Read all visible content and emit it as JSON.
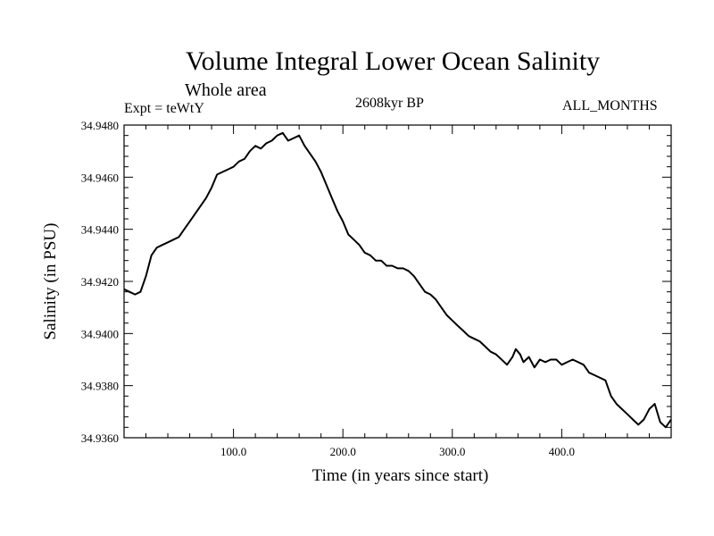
{
  "header": {
    "title": "Volume Integral Lower Ocean Salinity",
    "subtitle": "Whole area",
    "experiment": "Expt = teWtY",
    "period": "2608kyr BP",
    "months": "ALL_MONTHS"
  },
  "chart_data": {
    "type": "line",
    "title": "Volume Integral Lower Ocean Salinity",
    "xlabel": "Time (in years since start)",
    "ylabel": "Salinity (in PSU)",
    "xlim": [
      0,
      500
    ],
    "ylim": [
      34.936,
      34.948
    ],
    "x_ticks": [
      100,
      200,
      300,
      400
    ],
    "x_tick_labels": [
      "100.0",
      "200.0",
      "300.0",
      "400.0"
    ],
    "y_ticks": [
      34.936,
      34.938,
      34.94,
      34.942,
      34.944,
      34.946,
      34.948
    ],
    "y_tick_labels": [
      "34.9360",
      "34.9380",
      "34.9400",
      "34.9420",
      "34.9440",
      "34.9460",
      "34.9480"
    ],
    "grid": false,
    "series": [
      {
        "name": "salinity",
        "x": [
          0,
          5,
          10,
          15,
          20,
          25,
          30,
          35,
          40,
          45,
          50,
          55,
          60,
          65,
          70,
          75,
          80,
          85,
          90,
          95,
          100,
          105,
          110,
          115,
          120,
          125,
          130,
          135,
          140,
          145,
          150,
          155,
          160,
          165,
          170,
          175,
          180,
          185,
          190,
          195,
          200,
          205,
          210,
          215,
          220,
          225,
          230,
          235,
          240,
          245,
          250,
          255,
          260,
          265,
          270,
          275,
          280,
          285,
          290,
          295,
          300,
          305,
          310,
          315,
          320,
          325,
          330,
          335,
          340,
          345,
          350,
          355,
          358,
          362,
          365,
          370,
          375,
          380,
          385,
          390,
          395,
          400,
          405,
          410,
          415,
          420,
          425,
          430,
          435,
          440,
          445,
          450,
          455,
          460,
          465,
          470,
          475,
          480,
          485,
          490,
          495,
          500
        ],
        "values": [
          34.9417,
          34.9416,
          34.9415,
          34.9416,
          34.9422,
          34.943,
          34.9433,
          34.9434,
          34.9435,
          34.9436,
          34.9437,
          34.944,
          34.9443,
          34.9446,
          34.9449,
          34.9452,
          34.9456,
          34.9461,
          34.9462,
          34.9463,
          34.9464,
          34.9466,
          34.9467,
          34.947,
          34.9472,
          34.9471,
          34.9473,
          34.9474,
          34.9476,
          34.9477,
          34.9474,
          34.9475,
          34.9476,
          34.9472,
          34.9469,
          34.9466,
          34.9462,
          34.9457,
          34.9452,
          34.9447,
          34.9443,
          34.9438,
          34.9436,
          34.9434,
          34.9431,
          34.943,
          34.9428,
          34.9428,
          34.9426,
          34.9426,
          34.9425,
          34.9425,
          34.9424,
          34.9422,
          34.9419,
          34.9416,
          34.9415,
          34.9413,
          34.941,
          34.9407,
          34.9405,
          34.9403,
          34.9401,
          34.9399,
          34.9398,
          34.9397,
          34.9395,
          34.9393,
          34.9392,
          34.939,
          34.9388,
          34.9391,
          34.9394,
          34.9392,
          34.9389,
          34.9391,
          34.9387,
          34.939,
          34.9389,
          34.939,
          34.939,
          34.9388,
          34.9389,
          34.939,
          34.9389,
          34.9388,
          34.9385,
          34.9384,
          34.9383,
          34.9382,
          34.9376,
          34.9373,
          34.9371,
          34.9369,
          34.9367,
          34.9365,
          34.9367,
          34.9371,
          34.9373,
          34.9366,
          34.9364,
          34.9367
        ]
      }
    ]
  }
}
